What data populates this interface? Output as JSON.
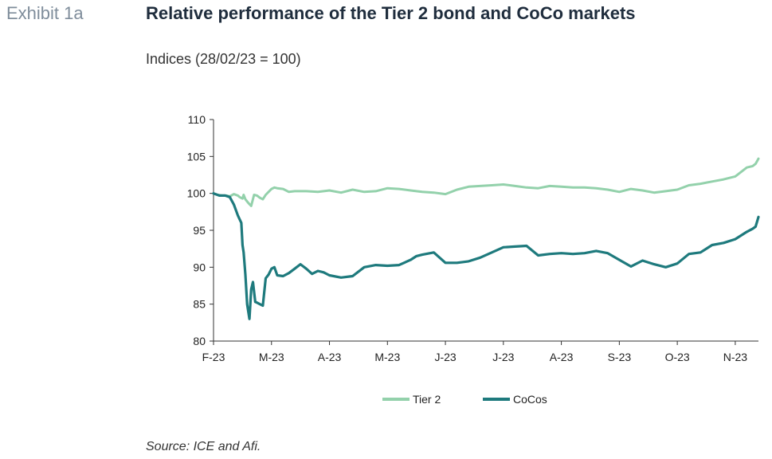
{
  "header": {
    "exhibit": "Exhibit 1a",
    "title": "Relative performance of the Tier 2 bond and CoCo markets",
    "subtitle": "Indices (28/02/23 = 100)"
  },
  "footer": {
    "source": "Source: ICE and Afi."
  },
  "colors": {
    "tier2": "#93d1ab",
    "cocos": "#1e7a7d",
    "axis": "#333333"
  },
  "chart_data": {
    "type": "line",
    "title": "Relative performance of the Tier 2 bond and CoCo markets",
    "subtitle": "Indices (28/02/23 = 100)",
    "xlabel": "",
    "ylabel": "",
    "ylim": [
      80,
      110
    ],
    "yticks": [
      80,
      85,
      90,
      95,
      100,
      105,
      110
    ],
    "xlim": [
      0,
      9.4
    ],
    "xticks": [
      {
        "pos": 0,
        "label": "F-23"
      },
      {
        "pos": 1,
        "label": "M-23"
      },
      {
        "pos": 2,
        "label": "A-23"
      },
      {
        "pos": 3,
        "label": "M-23"
      },
      {
        "pos": 4,
        "label": "J-23"
      },
      {
        "pos": 5,
        "label": "J-23"
      },
      {
        "pos": 6,
        "label": "A-23"
      },
      {
        "pos": 7,
        "label": "S-23"
      },
      {
        "pos": 8,
        "label": "O-23"
      },
      {
        "pos": 9,
        "label": "N-23"
      }
    ],
    "grid": false,
    "legend": "bottom-center",
    "series": [
      {
        "name": "Tier 2",
        "x": [
          0,
          0.07,
          0.15,
          0.22,
          0.28,
          0.35,
          0.42,
          0.45,
          0.5,
          0.52,
          0.55,
          0.6,
          0.65,
          0.7,
          0.75,
          0.8,
          0.85,
          0.9,
          1.0,
          1.05,
          1.1,
          1.2,
          1.3,
          1.4,
          1.6,
          1.8,
          2.0,
          2.2,
          2.4,
          2.6,
          2.8,
          3.0,
          3.2,
          3.4,
          3.6,
          3.8,
          4.0,
          4.2,
          4.4,
          4.6,
          4.8,
          5.0,
          5.2,
          5.4,
          5.6,
          5.8,
          6.0,
          6.2,
          6.4,
          6.6,
          6.8,
          7.0,
          7.2,
          7.4,
          7.6,
          7.8,
          8.0,
          8.2,
          8.4,
          8.6,
          8.8,
          9.0,
          9.2,
          9.3,
          9.35,
          9.4
        ],
        "values": [
          100,
          99.8,
          99.7,
          99.7,
          99.6,
          99.9,
          99.7,
          99.5,
          99.3,
          99.8,
          99.2,
          98.7,
          98.3,
          99.8,
          99.7,
          99.4,
          99.2,
          99.8,
          100.6,
          100.8,
          100.7,
          100.6,
          100.2,
          100.3,
          100.3,
          100.2,
          100.4,
          100.1,
          100.5,
          100.2,
          100.3,
          100.7,
          100.6,
          100.4,
          100.2,
          100.1,
          99.9,
          100.5,
          100.9,
          101.0,
          101.1,
          101.2,
          101.0,
          100.8,
          100.7,
          101.0,
          100.9,
          100.8,
          100.8,
          100.7,
          100.5,
          100.2,
          100.6,
          100.4,
          100.1,
          100.3,
          100.5,
          101.1,
          101.3,
          101.6,
          101.9,
          102.3,
          103.5,
          103.7,
          104.0,
          104.7
        ]
      },
      {
        "name": "CoCos",
        "x": [
          0,
          0.1,
          0.2,
          0.28,
          0.35,
          0.42,
          0.48,
          0.5,
          0.52,
          0.55,
          0.58,
          0.62,
          0.65,
          0.68,
          0.72,
          0.75,
          0.8,
          0.85,
          0.9,
          0.95,
          1.0,
          1.05,
          1.1,
          1.2,
          1.3,
          1.4,
          1.5,
          1.6,
          1.7,
          1.8,
          1.9,
          2.0,
          2.2,
          2.4,
          2.6,
          2.8,
          3.0,
          3.2,
          3.4,
          3.5,
          3.6,
          3.8,
          4.0,
          4.2,
          4.4,
          4.6,
          4.8,
          5.0,
          5.2,
          5.4,
          5.6,
          5.8,
          6.0,
          6.2,
          6.4,
          6.6,
          6.8,
          7.0,
          7.2,
          7.4,
          7.6,
          7.8,
          8.0,
          8.2,
          8.4,
          8.6,
          8.8,
          9.0,
          9.2,
          9.3,
          9.35,
          9.4
        ],
        "values": [
          100,
          99.7,
          99.7,
          99.5,
          98.5,
          97.0,
          96.0,
          93.0,
          92.0,
          89.0,
          85.0,
          83.0,
          87.0,
          88.0,
          85.3,
          85.2,
          85.0,
          84.8,
          88.5,
          89.0,
          89.8,
          90.0,
          88.9,
          88.8,
          89.2,
          89.8,
          90.4,
          89.8,
          89.1,
          89.5,
          89.3,
          88.9,
          88.6,
          88.8,
          90.0,
          90.3,
          90.2,
          90.3,
          91.0,
          91.5,
          91.7,
          92.0,
          90.6,
          90.6,
          90.8,
          91.3,
          92.0,
          92.7,
          92.8,
          92.9,
          91.6,
          91.8,
          91.9,
          91.8,
          91.9,
          92.2,
          91.9,
          91.0,
          90.1,
          90.9,
          90.4,
          90.0,
          90.5,
          91.8,
          92.0,
          93.0,
          93.3,
          93.8,
          94.8,
          95.2,
          95.5,
          96.8
        ]
      }
    ]
  }
}
